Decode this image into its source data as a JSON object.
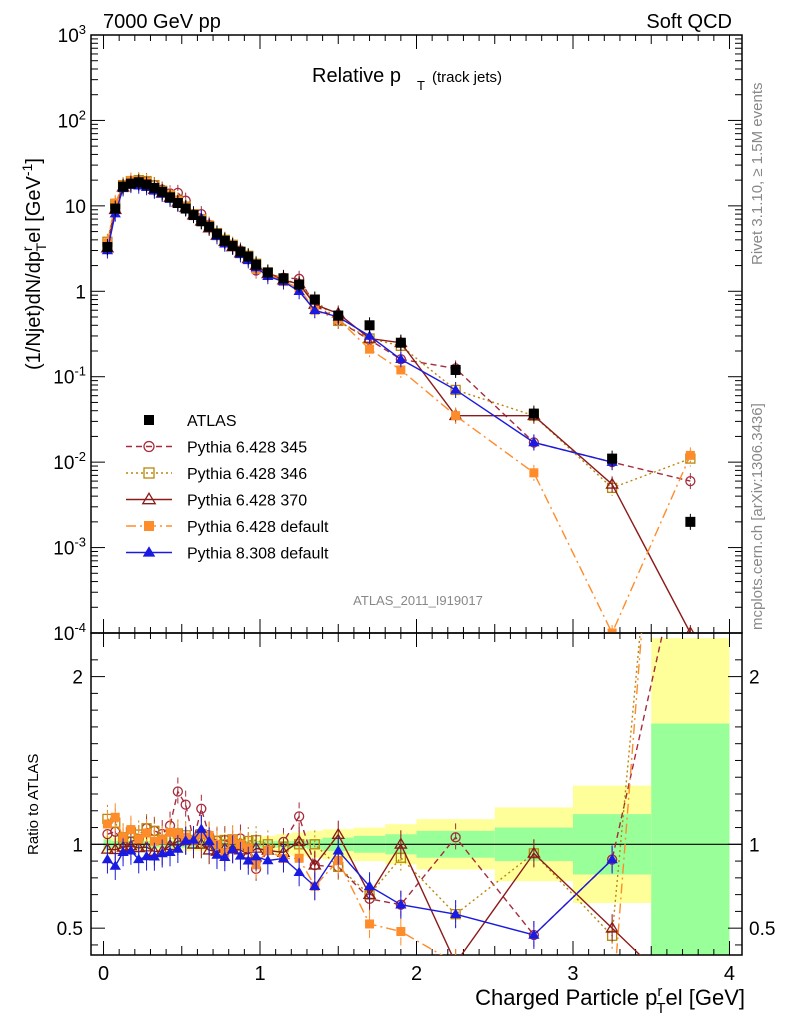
{
  "header": {
    "left": "7000 GeV pp",
    "right": "Soft QCD"
  },
  "side": {
    "rivet": "Rivet 3.1.10, ≥ 1.5M events",
    "mcplots": "mcplots.cern.ch [arXiv:1306.3436]"
  },
  "chart_data": [
    {
      "type": "scatter",
      "title": "Relative p_T (track jets)",
      "title_main": "Relative p",
      "title_sub": "T",
      "title_extra": "(track jets)",
      "ylabel": "(1/Njet)dN/dp^r_T el [GeV^-1]",
      "yscale": "log",
      "ylim": [
        0.0001,
        1000
      ],
      "xlim": [
        -0.08,
        4.08
      ],
      "ytick_labels": [
        "10^-4",
        "10^-3",
        "10^-2",
        "10^-1",
        "1",
        "10",
        "10^2",
        "10^3"
      ],
      "watermark": "ATLAS_2011_I919017",
      "legend_position": "lower-left",
      "series": [
        {
          "name": "ATLAS",
          "color": "#000000",
          "marker": "square-filled",
          "line": "none",
          "x": [
            0.025,
            0.075,
            0.125,
            0.175,
            0.225,
            0.275,
            0.325,
            0.375,
            0.425,
            0.475,
            0.525,
            0.575,
            0.625,
            0.675,
            0.725,
            0.775,
            0.825,
            0.875,
            0.925,
            0.975,
            1.05,
            1.15,
            1.25,
            1.35,
            1.5,
            1.7,
            1.9,
            2.25,
            2.75,
            3.25,
            3.75
          ],
          "y": [
            3.3,
            9.3,
            16.8,
            18.2,
            18.9,
            17.8,
            16.2,
            14.6,
            12.6,
            10.8,
            9.3,
            7.8,
            6.6,
            5.7,
            4.7,
            3.9,
            3.4,
            2.9,
            2.55,
            2.05,
            1.66,
            1.42,
            1.2,
            0.8,
            0.52,
            0.4,
            0.25,
            0.12,
            0.037,
            0.011,
            0.002
          ]
        },
        {
          "name": "Pythia 6.428 345",
          "color": "#a52a3c",
          "marker": "circle-open",
          "line": "dashed",
          "x": [
            0.025,
            0.075,
            0.125,
            0.175,
            0.225,
            0.275,
            0.325,
            0.375,
            0.425,
            0.475,
            0.525,
            0.575,
            0.625,
            0.675,
            0.725,
            0.775,
            0.825,
            0.875,
            0.925,
            0.975,
            1.05,
            1.15,
            1.25,
            1.35,
            1.5,
            1.7,
            1.9,
            2.25,
            2.75,
            3.25,
            3.75
          ],
          "y": [
            3.5,
            10.0,
            17.0,
            18.5,
            19.5,
            19.5,
            17.5,
            15.5,
            14.0,
            14.2,
            11.5,
            8.0,
            8.0,
            6.0,
            4.8,
            4.0,
            3.4,
            3.0,
            2.5,
            1.75,
            1.6,
            1.44,
            1.4,
            0.7,
            0.45,
            0.27,
            0.16,
            0.125,
            0.017,
            0.01,
            0.006
          ]
        },
        {
          "name": "Pythia 6.428 346",
          "color": "#b8860b",
          "marker": "square-open",
          "line": "dotted",
          "x": [
            0.025,
            0.075,
            0.125,
            0.175,
            0.225,
            0.275,
            0.325,
            0.375,
            0.425,
            0.475,
            0.525,
            0.575,
            0.625,
            0.675,
            0.725,
            0.775,
            0.825,
            0.875,
            0.925,
            0.975,
            1.05,
            1.15,
            1.25,
            1.35,
            1.5,
            1.7,
            1.9,
            2.25,
            2.75,
            3.25,
            3.75
          ],
          "y": [
            3.8,
            10.5,
            17.5,
            19.5,
            20.0,
            19.5,
            17.5,
            15.0,
            13.0,
            11.5,
            9.8,
            8.0,
            7.0,
            5.8,
            4.8,
            4.0,
            3.5,
            2.9,
            2.6,
            2.1,
            1.66,
            1.4,
            1.2,
            0.8,
            0.45,
            0.28,
            0.23,
            0.07,
            0.035,
            0.005,
            0.011
          ]
        },
        {
          "name": "Pythia 6.428 370",
          "color": "#8b1a1a",
          "marker": "triangle-open",
          "line": "solid",
          "x": [
            0.025,
            0.075,
            0.125,
            0.175,
            0.225,
            0.275,
            0.325,
            0.375,
            0.425,
            0.475,
            0.525,
            0.575,
            0.625,
            0.675,
            0.725,
            0.775,
            0.825,
            0.875,
            0.925,
            0.975,
            1.05,
            1.15,
            1.25,
            1.35,
            1.5,
            1.7,
            1.9,
            2.25,
            2.75,
            3.25,
            3.75
          ],
          "y": [
            3.2,
            9.0,
            16.5,
            18.0,
            18.5,
            17.5,
            15.5,
            14.0,
            12.5,
            11.0,
            9.5,
            7.8,
            6.6,
            5.5,
            4.5,
            3.8,
            3.3,
            2.8,
            2.4,
            2.0,
            1.6,
            1.35,
            1.22,
            0.7,
            0.55,
            0.28,
            0.25,
            0.035,
            0.035,
            0.0055,
            0.0001
          ]
        },
        {
          "name": "Pythia 6.428 default",
          "color": "#ff8c2a",
          "marker": "square-filled",
          "line": "dashdot",
          "x": [
            0.025,
            0.075,
            0.125,
            0.175,
            0.225,
            0.275,
            0.325,
            0.375,
            0.425,
            0.475,
            0.525,
            0.575,
            0.625,
            0.675,
            0.725,
            0.775,
            0.825,
            0.875,
            0.925,
            0.975,
            1.05,
            1.15,
            1.25,
            1.35,
            1.5,
            1.7,
            1.9,
            2.25,
            2.75,
            3.25,
            3.75
          ],
          "y": [
            3.7,
            10.8,
            17.5,
            19.8,
            19.5,
            19.0,
            16.5,
            15.0,
            13.5,
            11.5,
            9.7,
            8.0,
            7.0,
            6.0,
            4.7,
            3.7,
            3.5,
            2.9,
            2.5,
            1.8,
            1.6,
            1.3,
            1.1,
            0.6,
            0.47,
            0.21,
            0.12,
            0.035,
            0.0075,
            0.0001,
            0.012
          ]
        },
        {
          "name": "Pythia 8.308 default",
          "color": "#1a1ae0",
          "marker": "triangle-filled",
          "line": "solid",
          "x": [
            0.025,
            0.075,
            0.125,
            0.175,
            0.225,
            0.275,
            0.325,
            0.375,
            0.425,
            0.475,
            0.525,
            0.575,
            0.625,
            0.675,
            0.725,
            0.775,
            0.825,
            0.875,
            0.925,
            0.975,
            1.05,
            1.15,
            1.25,
            1.35,
            1.5,
            1.7,
            1.9,
            2.25,
            2.75,
            3.25,
            3.75
          ],
          "y": [
            3.0,
            8.1,
            16.0,
            17.5,
            17.2,
            16.5,
            15.0,
            13.8,
            12.0,
            10.5,
            9.5,
            8.0,
            7.2,
            5.8,
            4.4,
            3.6,
            3.3,
            2.7,
            2.3,
            1.9,
            1.5,
            1.3,
            1.0,
            0.6,
            0.5,
            0.3,
            0.16,
            0.07,
            0.017,
            0.01,
            0.0
          ]
        }
      ]
    },
    {
      "type": "line",
      "ylabel": "Ratio to ATLAS",
      "ylim": [
        0.34,
        2.26
      ],
      "ytick_labels": [
        "0.5",
        "1",
        "2"
      ],
      "xlabel": "Charged Particle p^r_T el [GeV]",
      "xtick_labels": [
        "0",
        "1",
        "2",
        "3",
        "4"
      ],
      "reference_line": 1,
      "band_edges": [
        0.0,
        0.05,
        0.1,
        0.15,
        0.2,
        0.25,
        0.3,
        0.35,
        0.4,
        0.45,
        0.5,
        0.55,
        0.6,
        0.65,
        0.7,
        0.75,
        0.8,
        0.85,
        0.9,
        0.95,
        1.0,
        1.1,
        1.2,
        1.3,
        1.4,
        1.6,
        1.8,
        2.0,
        2.5,
        3.0,
        3.5,
        4.0
      ],
      "band_stat_half": [
        0.03,
        0.02,
        0.02,
        0.02,
        0.02,
        0.02,
        0.02,
        0.02,
        0.02,
        0.02,
        0.02,
        0.02,
        0.02,
        0.02,
        0.02,
        0.02,
        0.02,
        0.02,
        0.02,
        0.02,
        0.02,
        0.02,
        0.02,
        0.03,
        0.04,
        0.05,
        0.06,
        0.08,
        0.1,
        0.18,
        0.72
      ],
      "band_total_half": [
        0.05,
        0.04,
        0.04,
        0.04,
        0.04,
        0.04,
        0.04,
        0.04,
        0.04,
        0.04,
        0.04,
        0.04,
        0.04,
        0.04,
        0.04,
        0.04,
        0.04,
        0.04,
        0.04,
        0.04,
        0.05,
        0.06,
        0.07,
        0.08,
        0.09,
        0.1,
        0.12,
        0.15,
        0.22,
        0.35,
        1.23
      ],
      "band_colors": {
        "stat": "#99ff99",
        "total": "#ffff99"
      }
    }
  ]
}
